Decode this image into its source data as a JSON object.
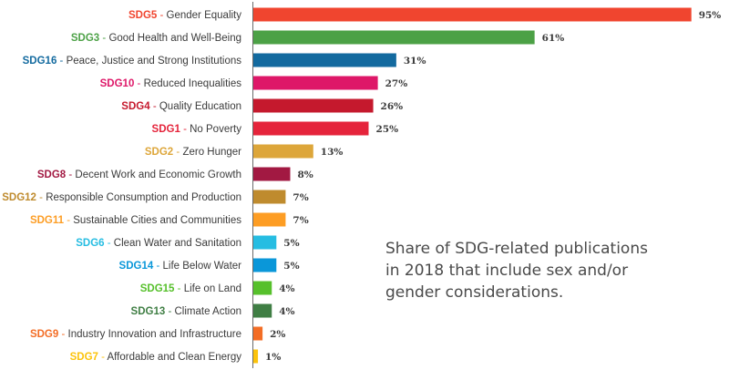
{
  "chart_data": {
    "type": "bar",
    "orientation": "horizontal",
    "categories": [
      {
        "code": "SDG5",
        "name": "Gender Equality",
        "color": "#f0452f"
      },
      {
        "code": "SDG3",
        "name": "Good Health and Well-Being",
        "color": "#4ca146"
      },
      {
        "code": "SDG16",
        "name": "Peace, Justice and Strong Institutions",
        "color": "#136a9f"
      },
      {
        "code": "SDG10",
        "name": "Reduced Inequalities",
        "color": "#de1768"
      },
      {
        "code": "SDG4",
        "name": "Quality Education",
        "color": "#c5192d"
      },
      {
        "code": "SDG1",
        "name": "No Poverty",
        "color": "#e5243b"
      },
      {
        "code": "SDG2",
        "name": "Zero Hunger",
        "color": "#dda63a"
      },
      {
        "code": "SDG8",
        "name": "Decent Work and Economic Growth",
        "color": "#a21942"
      },
      {
        "code": "SDG12",
        "name": "Responsible Consumption and Production",
        "color": "#bf8b2e"
      },
      {
        "code": "SDG11",
        "name": "Sustainable Cities and Communities",
        "color": "#fd9d24"
      },
      {
        "code": "SDG6",
        "name": "Clean Water and Sanitation",
        "color": "#26bde2"
      },
      {
        "code": "SDG14",
        "name": "Life Below Water",
        "color": "#0a97d9"
      },
      {
        "code": "SDG15",
        "name": "Life on Land",
        "color": "#56c02b"
      },
      {
        "code": "SDG13",
        "name": "Climate Action",
        "color": "#3f7e44"
      },
      {
        "code": "SDG9",
        "name": "Industry Innovation and Infrastructure",
        "color": "#f36d25"
      },
      {
        "code": "SDG7",
        "name": "Affordable and Clean Energy",
        "color": "#fcc30b"
      }
    ],
    "values": [
      95,
      61,
      31,
      27,
      26,
      25,
      13,
      8,
      7,
      7,
      5,
      5,
      4,
      4,
      2,
      1
    ],
    "value_labels": [
      "95%",
      "61%",
      "31%",
      "27%",
      "26%",
      "25%",
      "13%",
      "8%",
      "7%",
      "7%",
      "5%",
      "5%",
      "4%",
      "4%",
      "2%",
      "1%"
    ],
    "xlim": [
      0,
      100
    ],
    "grid": false,
    "legend": "none",
    "annotation": [
      "Share of SDG-related publications",
      "in 2018 that include sex and/or",
      "gender considerations."
    ]
  }
}
